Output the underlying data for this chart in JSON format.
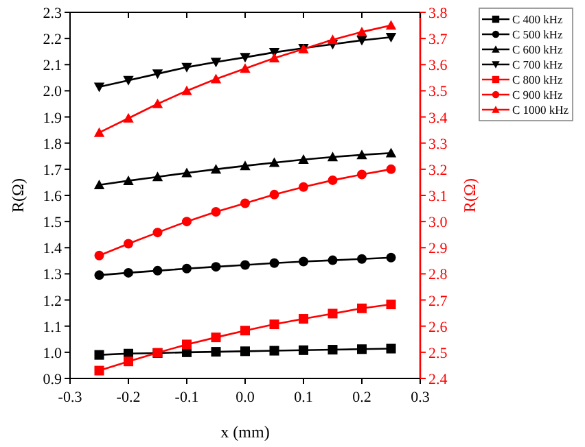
{
  "chart_data": {
    "type": "line",
    "xlabel": "x (mm)",
    "ylabel": "R(Ω)",
    "y2label": "R(Ω)",
    "x": [
      -0.25,
      -0.2,
      -0.15,
      -0.1,
      -0.05,
      0,
      0.05,
      0.1,
      0.15,
      0.2,
      0.25
    ],
    "xlim": [
      -0.3,
      0.3
    ],
    "xticks": [
      {
        "value": -0.3,
        "label": "-0.3"
      },
      {
        "value": -0.2,
        "label": "-0.2"
      },
      {
        "value": -0.1,
        "label": "-0.1"
      },
      {
        "value": 0,
        "label": "0.0"
      },
      {
        "value": 0.1,
        "label": "0.1"
      },
      {
        "value": 0.2,
        "label": "0.2"
      },
      {
        "value": 0.3,
        "label": "0.3"
      }
    ],
    "ylim": [
      0.9,
      2.3
    ],
    "yticks": [
      {
        "value": 0.9,
        "label": "0.9"
      },
      {
        "value": 1,
        "label": "1.0"
      },
      {
        "value": 1.1,
        "label": "1.1"
      },
      {
        "value": 1.2,
        "label": "1.2"
      },
      {
        "value": 1.3,
        "label": "1.3"
      },
      {
        "value": 1.4,
        "label": "1.4"
      },
      {
        "value": 1.5,
        "label": "1.5"
      },
      {
        "value": 1.6,
        "label": "1.6"
      },
      {
        "value": 1.7,
        "label": "1.7"
      },
      {
        "value": 1.8,
        "label": "1.8"
      },
      {
        "value": 1.9,
        "label": "1.9"
      },
      {
        "value": 2,
        "label": "2.0"
      },
      {
        "value": 2.1,
        "label": "2.1"
      },
      {
        "value": 2.2,
        "label": "2.2"
      },
      {
        "value": 2.3,
        "label": "2.3"
      }
    ],
    "y2lim": [
      2.4,
      3.8
    ],
    "y2ticks": [
      {
        "value": 2.4,
        "label": "2.4"
      },
      {
        "value": 2.5,
        "label": "2.5"
      },
      {
        "value": 2.6,
        "label": "2.6"
      },
      {
        "value": 2.7,
        "label": "2.7"
      },
      {
        "value": 2.8,
        "label": "2.8"
      },
      {
        "value": 2.9,
        "label": "2.9"
      },
      {
        "value": 3,
        "label": "3.0"
      },
      {
        "value": 3.1,
        "label": "3.1"
      },
      {
        "value": 3.2,
        "label": "3.2"
      },
      {
        "value": 3.3,
        "label": "3.3"
      },
      {
        "value": 3.4,
        "label": "3.4"
      },
      {
        "value": 3.5,
        "label": "3.5"
      },
      {
        "value": 3.6,
        "label": "3.6"
      },
      {
        "value": 3.7,
        "label": "3.7"
      },
      {
        "value": 3.8,
        "label": "3.8"
      }
    ],
    "legend": "top right",
    "grid": false,
    "line_style": "solid",
    "series": [
      {
        "name": "C 400 kHz",
        "color": "#000000",
        "marker": "square",
        "values": [
          0.99,
          0.995,
          0.997,
          1.0,
          1.002,
          1.004,
          1.006,
          1.008,
          1.01,
          1.012,
          1.014
        ]
      },
      {
        "name": "C 500 kHz",
        "color": "#000000",
        "marker": "circle",
        "values": [
          1.295,
          1.304,
          1.312,
          1.32,
          1.327,
          1.334,
          1.341,
          1.347,
          1.352,
          1.357,
          1.362
        ]
      },
      {
        "name": "C 600 kHz",
        "color": "#000000",
        "marker": "triangle",
        "values": [
          1.64,
          1.656,
          1.671,
          1.686,
          1.7,
          1.713,
          1.725,
          1.737,
          1.747,
          1.755,
          1.762
        ]
      },
      {
        "name": "C 700 kHz",
        "color": "#000000",
        "marker": "triangle-down",
        "values": [
          2.015,
          2.04,
          2.065,
          2.09,
          2.11,
          2.128,
          2.147,
          2.163,
          2.178,
          2.193,
          2.205
        ]
      },
      {
        "name": "C 800 kHz",
        "color": "#ff0000",
        "marker": "square",
        "axis": "y2",
        "values": [
          2.43,
          2.465,
          2.498,
          2.53,
          2.557,
          2.583,
          2.607,
          2.628,
          2.648,
          2.668,
          2.683
        ]
      },
      {
        "name": "C 900 kHz",
        "color": "#ff0000",
        "marker": "circle",
        "axis": "y2",
        "values": [
          2.87,
          2.915,
          2.958,
          3.0,
          3.037,
          3.07,
          3.103,
          3.132,
          3.158,
          3.18,
          3.2
        ]
      },
      {
        "name": "C 1000 kHz",
        "color": "#ff0000",
        "marker": "triangle",
        "axis": "y2",
        "values": [
          3.34,
          3.395,
          3.45,
          3.5,
          3.545,
          3.585,
          3.625,
          3.66,
          3.695,
          3.725,
          3.75
        ]
      }
    ]
  }
}
